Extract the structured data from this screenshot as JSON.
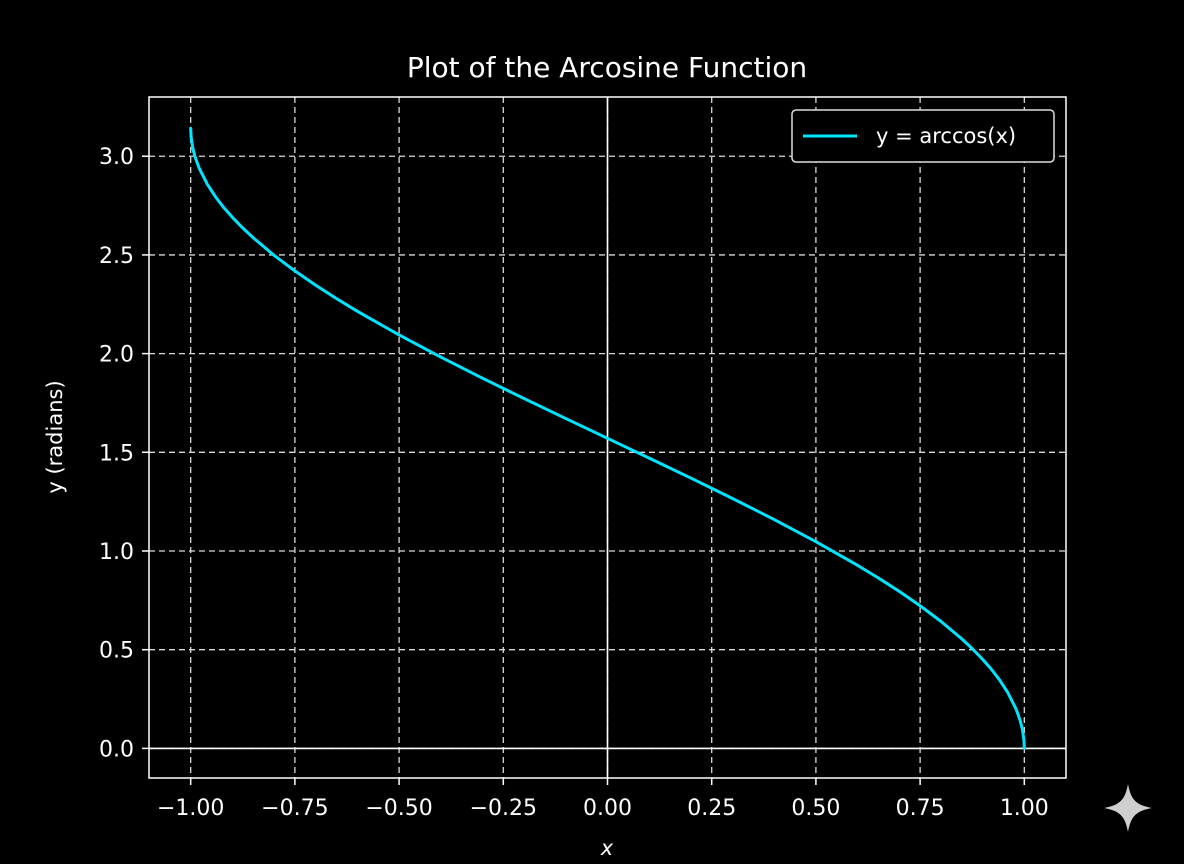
{
  "chart_data": {
    "type": "line",
    "title": "Plot of the Arcosine Function",
    "xlabel": "x",
    "ylabel": "y (radians)",
    "xlim": [
      -1.1,
      1.1
    ],
    "ylim": [
      -0.15,
      3.3
    ],
    "xticks": [
      -1.0,
      -0.75,
      -0.5,
      -0.25,
      0.0,
      0.25,
      0.5,
      0.75,
      1.0
    ],
    "xtick_labels": [
      "−1.00",
      "−0.75",
      "−0.50",
      "−0.25",
      "0.00",
      "0.25",
      "0.50",
      "0.75",
      "1.00"
    ],
    "yticks": [
      0.0,
      0.5,
      1.0,
      1.5,
      2.0,
      2.5,
      3.0
    ],
    "ytick_labels": [
      "0.0",
      "0.5",
      "1.0",
      "1.5",
      "2.0",
      "2.5",
      "3.0"
    ],
    "grid": true,
    "grid_style": "dashed",
    "zero_lines": true,
    "legend_position": "top-right",
    "series": [
      {
        "name": "y = arccos(x)",
        "color": "#00e5ff",
        "x": [
          -1.0,
          -0.999,
          -0.995,
          -0.99,
          -0.98,
          -0.96,
          -0.94,
          -0.92,
          -0.9,
          -0.875,
          -0.85,
          -0.8,
          -0.75,
          -0.7,
          -0.65,
          -0.6,
          -0.5,
          -0.4,
          -0.3,
          -0.2,
          -0.1,
          0.0,
          0.1,
          0.2,
          0.3,
          0.4,
          0.5,
          0.6,
          0.65,
          0.7,
          0.75,
          0.8,
          0.85,
          0.875,
          0.9,
          0.92,
          0.94,
          0.96,
          0.98,
          0.99,
          0.995,
          0.999,
          1.0
        ],
        "y": [
          3.1416,
          3.0969,
          3.0416,
          3.0001,
          2.9413,
          2.8578,
          2.7928,
          2.7381,
          2.6906,
          2.6362,
          2.5868,
          2.4981,
          2.4189,
          2.3462,
          2.2784,
          2.2143,
          2.0944,
          1.9823,
          1.8755,
          1.7722,
          1.671,
          1.5708,
          1.4706,
          1.3694,
          1.2661,
          1.1593,
          1.0472,
          0.9273,
          0.8632,
          0.7954,
          0.7227,
          0.6435,
          0.5548,
          0.5054,
          0.451,
          0.4035,
          0.3488,
          0.2838,
          0.2003,
          0.1415,
          0.1,
          0.0447,
          0.0
        ]
      }
    ]
  },
  "watermark": {
    "icon": "sparkle-icon",
    "color": "#cfcfcf"
  }
}
